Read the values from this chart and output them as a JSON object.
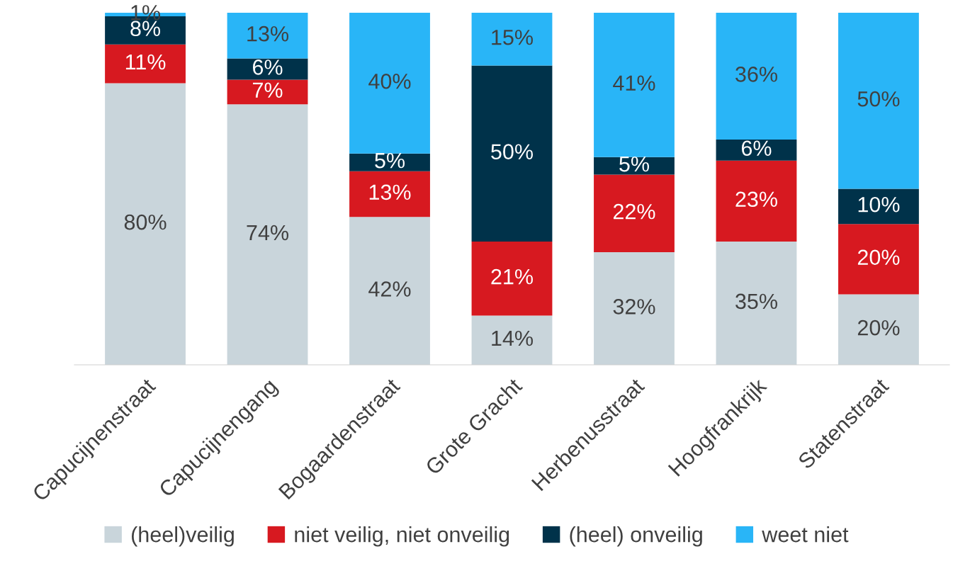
{
  "chart_data": {
    "type": "bar",
    "stacked": true,
    "legend": "bottom",
    "grid": false,
    "categories": [
      "Capucijnenstraat",
      "Capucijnengang",
      "Bogaardenstraat",
      "Grote Gracht",
      "Herbenusstraat",
      "Hoogfrankrijk",
      "Statenstraat"
    ],
    "series": [
      {
        "name": "(heel)veilig",
        "color": "#c9d5db",
        "values": [
          80,
          74,
          42,
          14,
          32,
          35,
          20
        ],
        "value_labels": [
          "80%",
          "74%",
          "42%",
          "14%",
          "32%",
          "35%",
          "20%"
        ]
      },
      {
        "name": "niet veilig, niet onveilig",
        "color": "#d71920",
        "values": [
          11,
          7,
          13,
          21,
          22,
          23,
          20
        ],
        "value_labels": [
          "11%",
          "7%",
          "13%",
          "21%",
          "22%",
          "23%",
          "20%"
        ]
      },
      {
        "name": "(heel) onveilig",
        "color": "#00324a",
        "values": [
          8,
          6,
          5,
          50,
          5,
          6,
          10
        ],
        "value_labels": [
          "8%",
          "6%",
          "5%",
          "50%",
          "5%",
          "6%",
          "10%"
        ]
      },
      {
        "name": "weet niet",
        "color": "#29b5f7",
        "values": [
          1,
          13,
          40,
          15,
          41,
          36,
          50
        ],
        "value_labels": [
          "1%",
          "13%",
          "40%",
          "15%",
          "41%",
          "36%",
          "50%"
        ]
      }
    ]
  }
}
